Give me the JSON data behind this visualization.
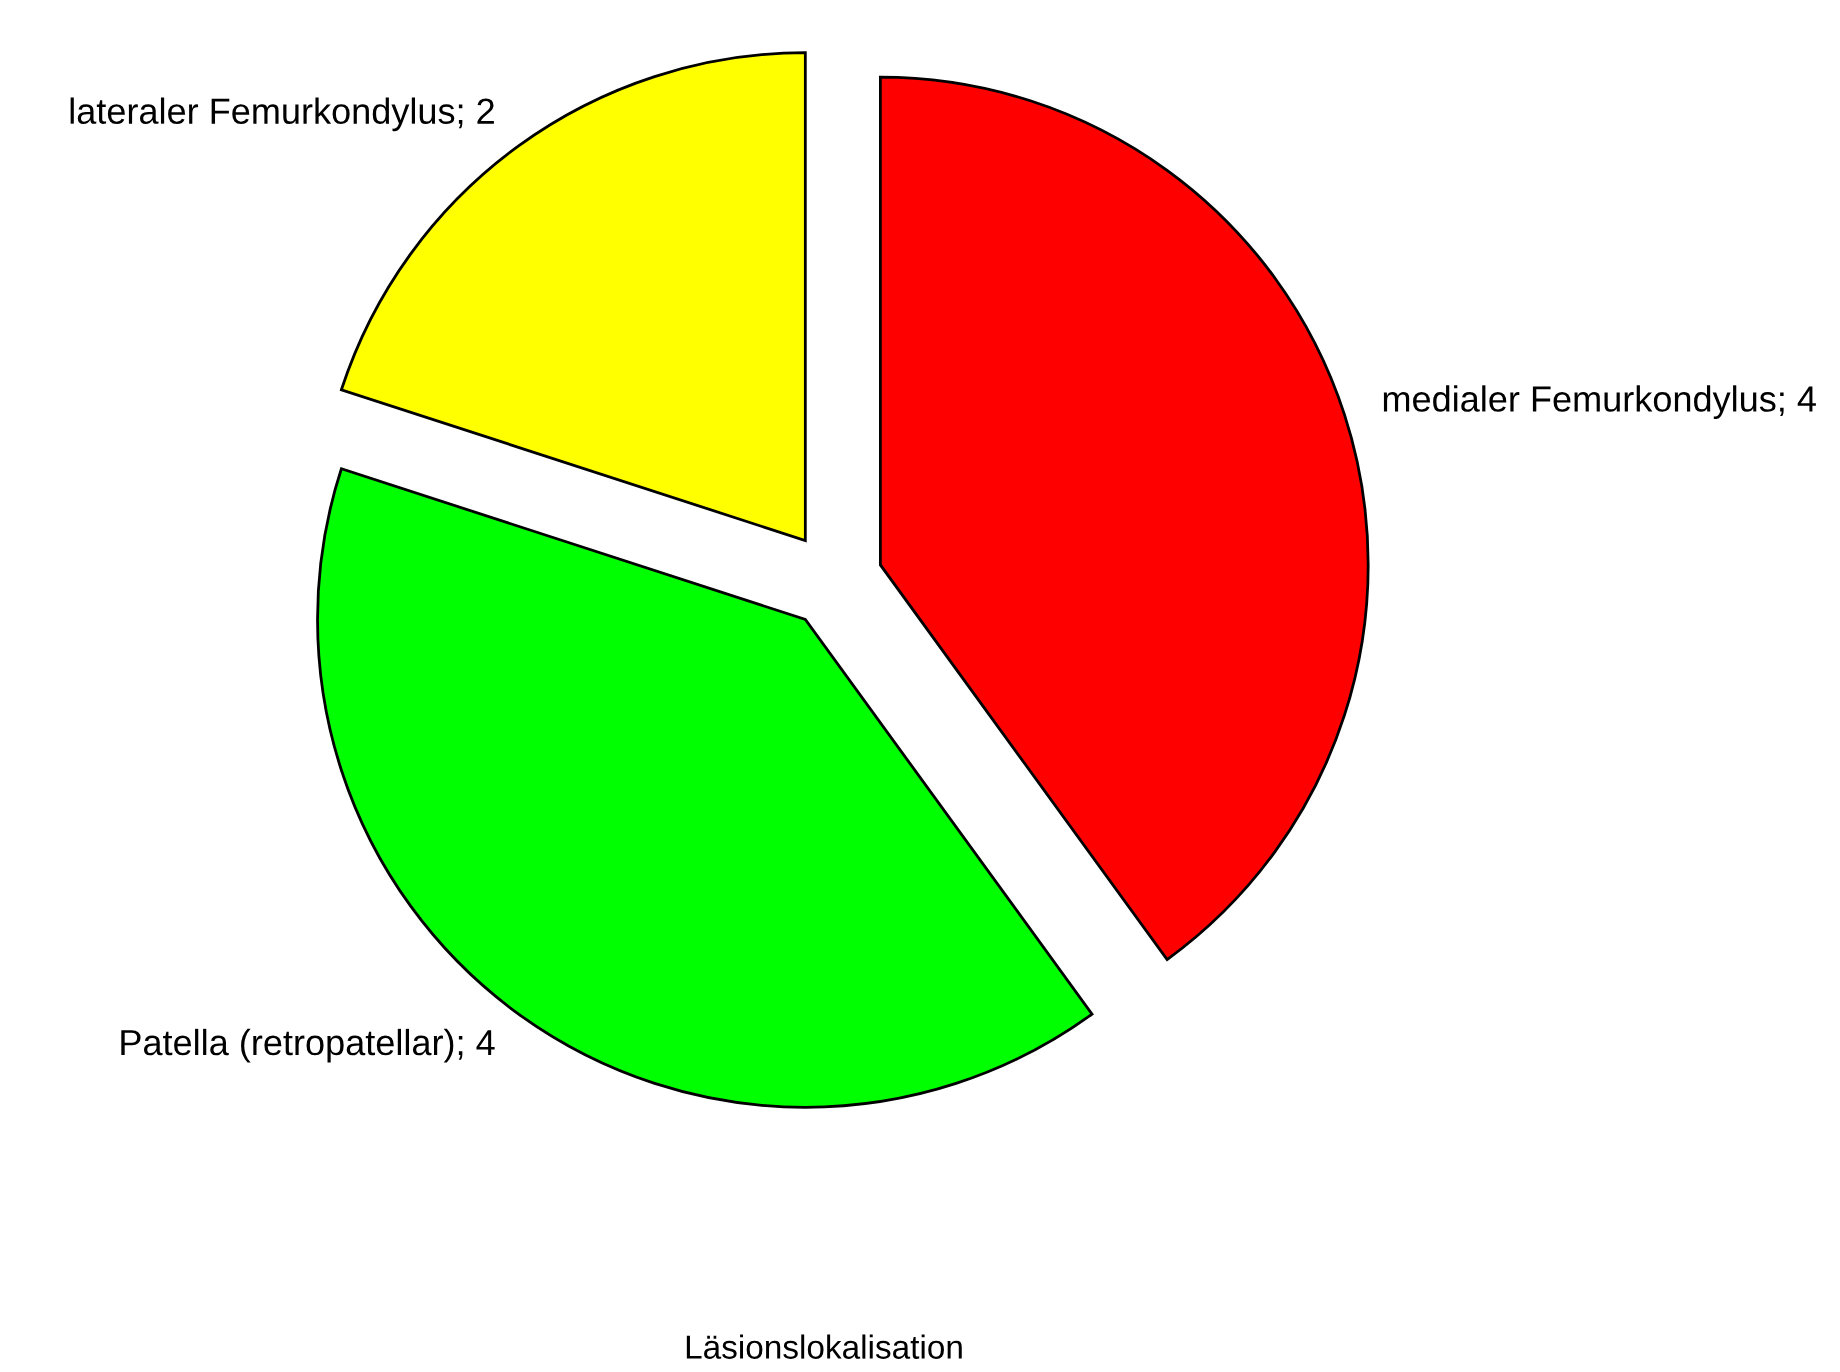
{
  "chart_data": {
    "type": "pie",
    "xlabel": "Läsionslokalisation",
    "categories": [
      "medialer Femurkondylus; 4",
      "Patella (retropatellar); 4",
      "lateraler Femurkondylus; 2"
    ],
    "values": [
      4,
      4,
      2
    ],
    "colors": [
      "#ff0000",
      "#00ff00",
      "#ffff00"
    ],
    "legend": false
  }
}
